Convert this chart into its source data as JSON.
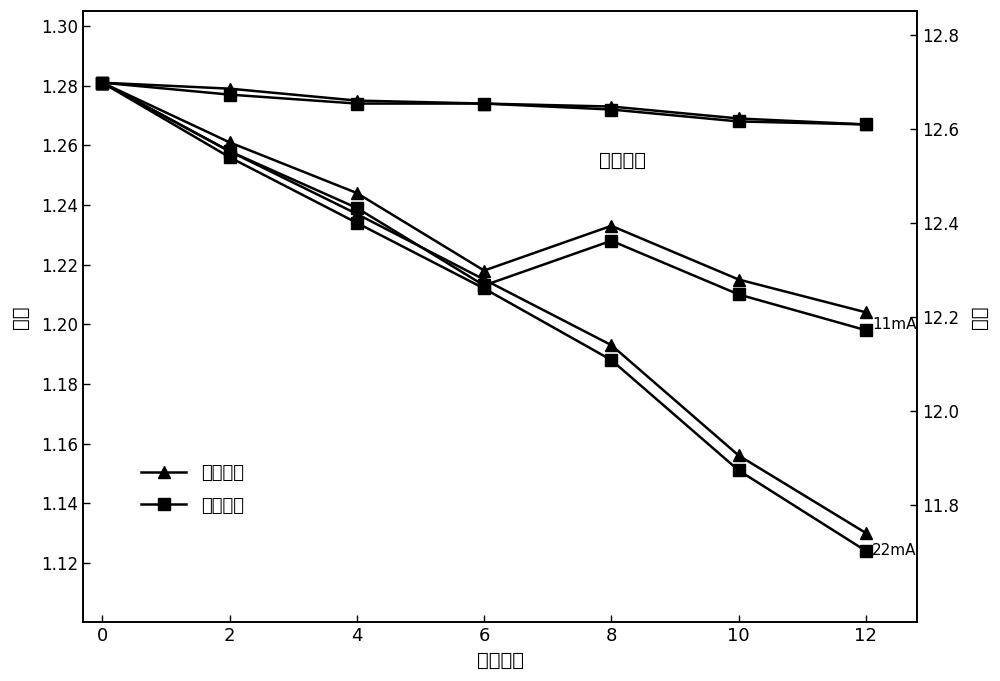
{
  "x": [
    0,
    2,
    4,
    6,
    8,
    10,
    12
  ],
  "series": [
    {
      "label": "电池上部",
      "marker": "^",
      "group": "natural",
      "y": [
        1.281,
        1.279,
        1.275,
        1.274,
        1.273,
        1.269,
        1.267
      ]
    },
    {
      "label": "电池下部",
      "marker": "s",
      "group": "natural",
      "y": [
        1.281,
        1.277,
        1.274,
        1.274,
        1.272,
        1.268,
        1.267
      ]
    },
    {
      "label": "电池上部",
      "marker": "^",
      "group": "11mA",
      "y": [
        1.281,
        1.261,
        1.244,
        1.218,
        1.233,
        1.215,
        1.204
      ]
    },
    {
      "label": "电池下部",
      "marker": "s",
      "group": "11mA",
      "y": [
        1.281,
        1.258,
        1.239,
        1.213,
        1.228,
        1.21,
        1.198
      ]
    },
    {
      "label": "电池上部",
      "marker": "^",
      "group": "22mA",
      "y": [
        1.281,
        1.258,
        1.237,
        1.215,
        1.193,
        1.156,
        1.13
      ]
    },
    {
      "label": "电池下部",
      "marker": "s",
      "group": "22mA",
      "y": [
        1.281,
        1.256,
        1.234,
        1.212,
        1.188,
        1.151,
        1.124
      ]
    }
  ],
  "ylabel_left": "比重",
  "ylabel_right": "电压",
  "xlabel": "时间／周",
  "ylim_left": [
    1.1,
    1.305
  ],
  "ylim_right": [
    11.55,
    12.85
  ],
  "yticks_left": [
    1.12,
    1.14,
    1.16,
    1.18,
    1.2,
    1.22,
    1.24,
    1.26,
    1.28,
    1.3
  ],
  "yticks_right": [
    11.8,
    12.0,
    12.2,
    12.4,
    12.6,
    12.8
  ],
  "xticks": [
    0,
    2,
    4,
    6,
    8,
    10,
    12
  ],
  "annotation_natural": "自然放电",
  "annotation_11mA": "11mA",
  "annotation_22mA": "22mA",
  "line_color": "#000000",
  "background_color": "#ffffff",
  "legend_label_top": "电池上部",
  "legend_label_bot": "电池下部"
}
